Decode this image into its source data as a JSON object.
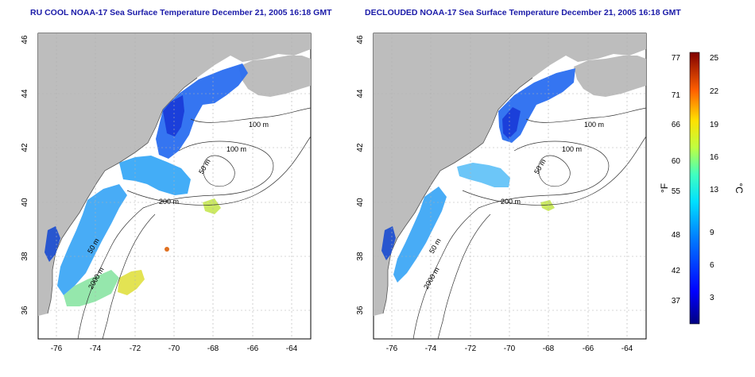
{
  "panels": [
    {
      "title": "RU COOL NOAA-17 Sea Surface Temperature December 21, 2005 16:18 GMT",
      "x_ticks": [
        "-76",
        "-74",
        "-72",
        "-70",
        "-68",
        "-66",
        "-64"
      ],
      "y_ticks": [
        "36",
        "38",
        "40",
        "42",
        "44",
        "46"
      ],
      "contour_labels": [
        "100 m",
        "100 m",
        "50 m",
        "200 m",
        "50 m",
        "2000 m"
      ]
    },
    {
      "title": "DECLOUDED NOAA-17 Sea Surface Temperature December 21, 2005 16:18 GMT",
      "x_ticks": [
        "-76",
        "-74",
        "-72",
        "-70",
        "-68",
        "-66",
        "-64"
      ],
      "y_ticks": [
        "36",
        "38",
        "40",
        "42",
        "44",
        "46"
      ],
      "contour_labels": [
        "100 m",
        "100 m",
        "50 m",
        "200 m",
        "50 m",
        "2000 m"
      ]
    }
  ],
  "colorbar": {
    "f_label": "°F",
    "c_label": "°C",
    "f_ticks": [
      "77",
      "71",
      "66",
      "60",
      "55",
      "48",
      "42",
      "37"
    ],
    "c_ticks": [
      "25",
      "22",
      "19",
      "16",
      "13",
      "9",
      "6",
      "3"
    ]
  },
  "colors": {
    "land": "#bdbdbd",
    "title": "#1a1aa8",
    "cold": "#1a3cd8",
    "warm": "#e8d21e"
  }
}
